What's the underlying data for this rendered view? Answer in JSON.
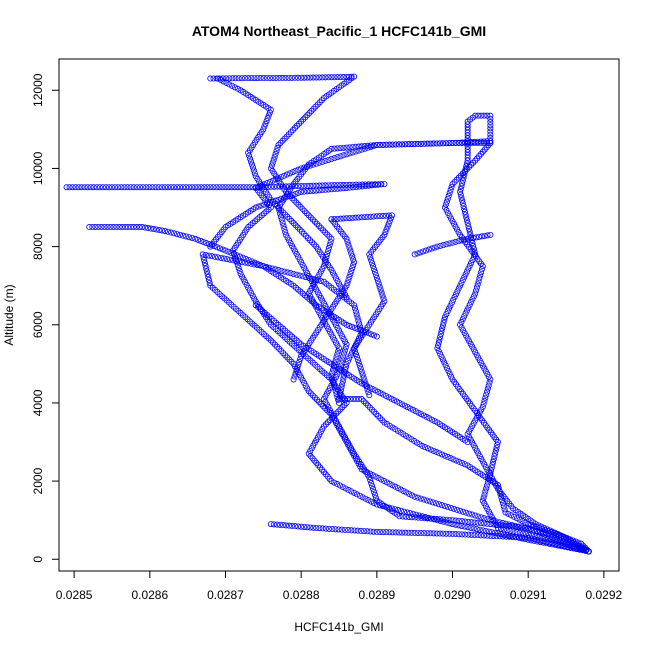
{
  "chart_data": {
    "type": "scatter",
    "title": "ATOM4 Northeast_Pacific_1 HCFC141b_GMI",
    "xlabel": "HCFC141b_GMI",
    "ylabel": "Altitude (m)",
    "xlim": [
      0.02848,
      0.02922
    ],
    "ylim": [
      -300,
      12800
    ],
    "x_ticks": [
      0.0285,
      0.0286,
      0.0287,
      0.0288,
      0.0289,
      0.029,
      0.0291,
      0.0292
    ],
    "x_tick_labels": [
      "0.0285",
      "0.0286",
      "0.0287",
      "0.0288",
      "0.0289",
      "0.0290",
      "0.0291",
      "0.0292"
    ],
    "y_ticks": [
      0,
      2000,
      4000,
      6000,
      8000,
      10000,
      12000
    ],
    "y_tick_labels": [
      "0",
      "2000",
      "4000",
      "6000",
      "8000",
      "10000",
      "12000"
    ],
    "marker": "open-circle",
    "color": "#0000ff",
    "series": [
      {
        "points": [
          [
            0.02918,
            200
          ],
          [
            0.02914,
            600
          ],
          [
            0.02905,
            1000
          ],
          [
            0.02895,
            1600
          ],
          [
            0.02888,
            2300
          ],
          [
            0.02886,
            3000
          ],
          [
            0.02884,
            3700
          ],
          [
            0.02881,
            4300
          ],
          [
            0.02879,
            5000
          ],
          [
            0.02876,
            5600
          ],
          [
            0.02872,
            6300
          ],
          [
            0.02868,
            7000
          ],
          [
            0.02867,
            7800
          ],
          [
            0.02875,
            7500
          ],
          [
            0.02883,
            7100
          ],
          [
            0.02887,
            6500
          ],
          [
            0.02888,
            5800
          ],
          [
            0.02886,
            5000
          ],
          [
            0.02885,
            4100
          ],
          [
            0.02888,
            4100
          ],
          [
            0.02891,
            3500
          ],
          [
            0.02896,
            2900
          ],
          [
            0.02902,
            2400
          ],
          [
            0.02906,
            1900
          ],
          [
            0.02907,
            1200
          ],
          [
            0.0291,
            900
          ],
          [
            0.02913,
            700
          ],
          [
            0.02917,
            400
          ],
          [
            0.02918,
            200
          ]
        ]
      },
      {
        "points": [
          [
            0.02918,
            200
          ],
          [
            0.0291,
            500
          ],
          [
            0.029,
            900
          ],
          [
            0.0289,
            1400
          ],
          [
            0.02884,
            2000
          ],
          [
            0.02881,
            2700
          ],
          [
            0.02883,
            3400
          ],
          [
            0.02886,
            4000
          ],
          [
            0.02884,
            4600
          ],
          [
            0.0288,
            5300
          ],
          [
            0.02876,
            6000
          ],
          [
            0.02874,
            6600
          ],
          [
            0.02872,
            7300
          ],
          [
            0.02871,
            7900
          ],
          [
            0.02873,
            8500
          ],
          [
            0.02876,
            9000
          ],
          [
            0.02874,
            9500
          ],
          [
            0.0288,
            10000
          ],
          [
            0.0289,
            10600
          ],
          [
            0.029,
            10650
          ],
          [
            0.02905,
            10650
          ]
        ]
      },
      {
        "points": [
          [
            0.02905,
            10650
          ],
          [
            0.02903,
            10200
          ],
          [
            0.029,
            9600
          ],
          [
            0.02899,
            9000
          ],
          [
            0.02901,
            8300
          ],
          [
            0.02904,
            7500
          ],
          [
            0.02903,
            6800
          ],
          [
            0.02901,
            6000
          ],
          [
            0.02903,
            5300
          ],
          [
            0.02905,
            4600
          ],
          [
            0.02904,
            3900
          ],
          [
            0.02902,
            3200
          ],
          [
            0.02904,
            2500
          ],
          [
            0.02906,
            1800
          ],
          [
            0.02908,
            1300
          ],
          [
            0.02911,
            900
          ],
          [
            0.02915,
            550
          ],
          [
            0.02918,
            200
          ]
        ]
      },
      {
        "points": [
          [
            0.02918,
            200
          ],
          [
            0.02913,
            500
          ],
          [
            0.02906,
            800
          ],
          [
            0.02904,
            1500
          ],
          [
            0.02905,
            2200
          ],
          [
            0.02906,
            3000
          ],
          [
            0.02903,
            3800
          ],
          [
            0.029,
            4600
          ],
          [
            0.02898,
            5400
          ],
          [
            0.02899,
            6200
          ],
          [
            0.02901,
            7000
          ],
          [
            0.02903,
            7800
          ],
          [
            0.02902,
            8600
          ],
          [
            0.02901,
            9400
          ],
          [
            0.02902,
            10200
          ],
          [
            0.02902,
            10700
          ],
          [
            0.02902,
            11200
          ],
          [
            0.02903,
            11350
          ],
          [
            0.02905,
            11350
          ],
          [
            0.02905,
            10700
          ]
        ]
      },
      {
        "points": [
          [
            0.02905,
            10700
          ],
          [
            0.029,
            10650
          ],
          [
            0.0289,
            10600
          ],
          [
            0.02884,
            10500
          ],
          [
            0.02881,
            10100
          ],
          [
            0.02879,
            9600
          ],
          [
            0.02877,
            9000
          ],
          [
            0.02878,
            8300
          ],
          [
            0.0288,
            7600
          ],
          [
            0.02882,
            6900
          ],
          [
            0.02884,
            6200
          ],
          [
            0.02886,
            5500
          ],
          [
            0.02885,
            4800
          ],
          [
            0.02883,
            4100
          ],
          [
            0.02885,
            3400
          ],
          [
            0.02887,
            2700
          ],
          [
            0.02889,
            2100
          ],
          [
            0.0289,
            1500
          ],
          [
            0.02893,
            1100
          ],
          [
            0.029,
            1000
          ],
          [
            0.0291,
            800
          ],
          [
            0.02918,
            200
          ]
        ]
      },
      {
        "points": [
          [
            0.02849,
            9520
          ],
          [
            0.02855,
            9520
          ],
          [
            0.02862,
            9520
          ],
          [
            0.02868,
            9520
          ],
          [
            0.02874,
            9520
          ],
          [
            0.0288,
            9550
          ],
          [
            0.02886,
            9580
          ],
          [
            0.02891,
            9600
          ],
          [
            0.02886,
            9500
          ],
          [
            0.0288,
            9400
          ],
          [
            0.02874,
            9000
          ],
          [
            0.0287,
            8500
          ],
          [
            0.02868,
            8000
          ]
        ]
      },
      {
        "points": [
          [
            0.02868,
            12300
          ],
          [
            0.02873,
            12310
          ],
          [
            0.0288,
            12320
          ],
          [
            0.02886,
            12340
          ],
          [
            0.02887,
            12350
          ],
          [
            0.02883,
            11800
          ],
          [
            0.0288,
            11200
          ],
          [
            0.02877,
            10600
          ],
          [
            0.02876,
            10000
          ],
          [
            0.02878,
            9400
          ],
          [
            0.02881,
            8800
          ],
          [
            0.02884,
            8200
          ],
          [
            0.02883,
            7500
          ],
          [
            0.02881,
            6800
          ],
          [
            0.02883,
            6100
          ],
          [
            0.02885,
            5400
          ],
          [
            0.02884,
            4700
          ],
          [
            0.02885,
            4000
          ]
        ]
      },
      {
        "points": [
          [
            0.02869,
            12300
          ],
          [
            0.02872,
            12000
          ],
          [
            0.02876,
            11500
          ],
          [
            0.02875,
            11000
          ],
          [
            0.02873,
            10400
          ],
          [
            0.02874,
            9800
          ],
          [
            0.02876,
            9200
          ],
          [
            0.02879,
            8600
          ],
          [
            0.02882,
            8000
          ],
          [
            0.02884,
            7400
          ],
          [
            0.02886,
            6700
          ]
        ]
      },
      {
        "points": [
          [
            0.02884,
            8700
          ],
          [
            0.02888,
            8750
          ],
          [
            0.02892,
            8800
          ],
          [
            0.02891,
            8300
          ],
          [
            0.02889,
            7800
          ],
          [
            0.0289,
            7200
          ],
          [
            0.02891,
            6600
          ],
          [
            0.02889,
            6000
          ],
          [
            0.02887,
            5400
          ],
          [
            0.02888,
            4800
          ],
          [
            0.02889,
            4200
          ]
        ]
      },
      {
        "points": [
          [
            0.02884,
            8700
          ],
          [
            0.02886,
            8200
          ],
          [
            0.02887,
            7600
          ],
          [
            0.02886,
            7000
          ],
          [
            0.02884,
            6400
          ],
          [
            0.02882,
            5800
          ],
          [
            0.0288,
            5200
          ],
          [
            0.02879,
            4600
          ]
        ]
      },
      {
        "points": [
          [
            0.02852,
            8500
          ],
          [
            0.02856,
            8500
          ],
          [
            0.02859,
            8500
          ],
          [
            0.02862,
            8400
          ],
          [
            0.02866,
            8200
          ],
          [
            0.0287,
            7900
          ],
          [
            0.02875,
            7500
          ],
          [
            0.02879,
            7000
          ],
          [
            0.02882,
            6500
          ],
          [
            0.02886,
            6000
          ],
          [
            0.0289,
            5700
          ]
        ]
      },
      {
        "points": [
          [
            0.02876,
            900
          ],
          [
            0.02882,
            800
          ],
          [
            0.0289,
            700
          ],
          [
            0.029,
            650
          ],
          [
            0.0291,
            550
          ],
          [
            0.02918,
            200
          ]
        ]
      },
      {
        "points": [
          [
            0.02874,
            6500
          ],
          [
            0.02877,
            6000
          ],
          [
            0.0288,
            5500
          ],
          [
            0.02884,
            5000
          ],
          [
            0.02888,
            4500
          ],
          [
            0.02893,
            4000
          ],
          [
            0.02898,
            3500
          ],
          [
            0.02902,
            3000
          ]
        ]
      },
      {
        "points": [
          [
            0.02895,
            7800
          ],
          [
            0.02898,
            8000
          ],
          [
            0.02902,
            8200
          ],
          [
            0.02905,
            8300
          ]
        ]
      }
    ]
  }
}
